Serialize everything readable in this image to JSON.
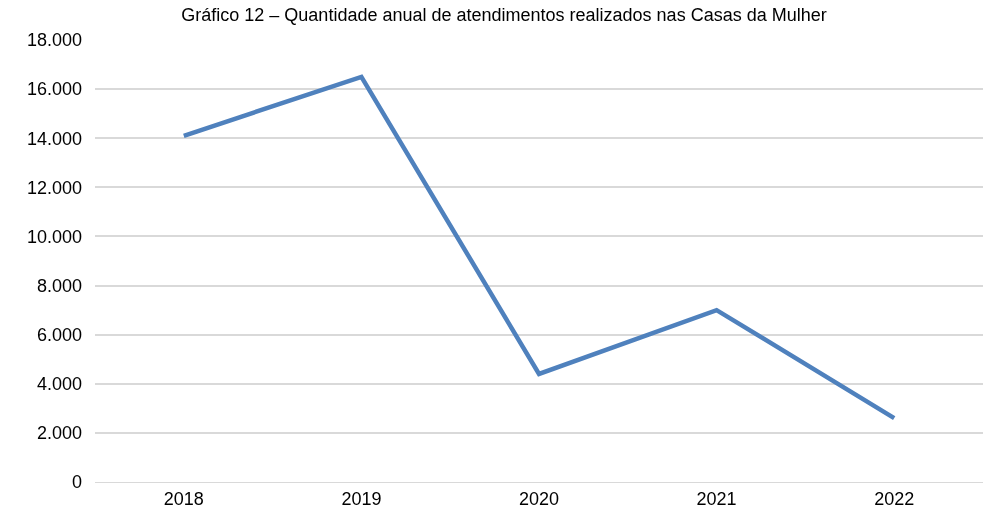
{
  "chart_data": {
    "type": "line",
    "title": "Gráfico 12 – Quantidade anual de atendimentos realizados nas Casas da Mulher",
    "categories": [
      "2018",
      "2019",
      "2020",
      "2021",
      "2022"
    ],
    "series": [
      {
        "color": "#4f81bd",
        "values": [
          14100,
          16500,
          4400,
          7000,
          2600
        ]
      }
    ],
    "ylim": [
      0,
      18000
    ],
    "yticks": [
      {
        "value": 0,
        "label": "0"
      },
      {
        "value": 2000,
        "label": "2.000"
      },
      {
        "value": 4000,
        "label": "4.000"
      },
      {
        "value": 6000,
        "label": "6.000"
      },
      {
        "value": 8000,
        "label": "8.000"
      },
      {
        "value": 10000,
        "label": "10.000"
      },
      {
        "value": 12000,
        "label": "12.000"
      },
      {
        "value": 14000,
        "label": "14.000"
      },
      {
        "value": 16000,
        "label": "16.000"
      },
      {
        "value": 18000,
        "label": "18.000"
      }
    ],
    "grid": "y",
    "marker": "none",
    "line_style": "solid"
  }
}
